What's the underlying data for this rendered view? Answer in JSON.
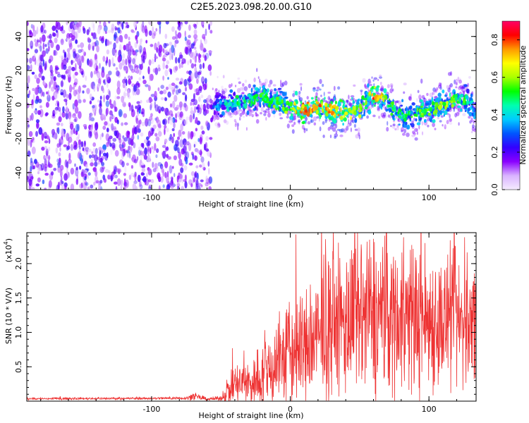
{
  "title": "C2E5.2023.098.20.00.G10",
  "chart_data": [
    {
      "type": "heatmap",
      "xlabel": "Height of straight line (km)",
      "ylabel": "Frequency (Hz)",
      "xlim": [
        -190,
        134
      ],
      "ylim": [
        -50,
        49
      ],
      "xticks": [
        -100,
        0,
        100
      ],
      "yticks": [
        -40,
        -20,
        0,
        20,
        40
      ],
      "colorbar": {
        "label": "Normalized spectral amplitude",
        "range": [
          0.0,
          0.9
        ],
        "ticks": [
          "0.0",
          "0.2",
          "0.4",
          "0.6",
          "0.8"
        ],
        "colors": [
          "#f5ecff",
          "#d9b3ff",
          "#8a00ff",
          "#3300ff",
          "#0055ff",
          "#00ccff",
          "#00ffb0",
          "#00ff00",
          "#aaff00",
          "#ffff00",
          "#ff9900",
          "#ff0000",
          "#ff0066"
        ]
      },
      "noise_region": {
        "x_range": [
          -190,
          -57
        ],
        "typical_amplitude": 0.15
      },
      "signal_ridge": {
        "x": [
          -57,
          -50,
          -40,
          -30,
          -20,
          -10,
          0,
          10,
          20,
          30,
          40,
          50,
          55,
          60,
          65,
          70,
          80,
          90,
          100,
          110,
          120,
          130,
          134
        ],
        "y": [
          -2,
          0,
          1,
          2,
          5,
          2,
          -2,
          -3,
          -1,
          -3,
          -5,
          -3,
          3,
          6,
          5,
          2,
          -7,
          -5,
          -3,
          0,
          4,
          2,
          -7
        ],
        "amplitude": [
          0.3,
          0.4,
          0.45,
          0.5,
          0.55,
          0.55,
          0.6,
          0.8,
          0.7,
          0.75,
          0.7,
          0.6,
          0.55,
          0.8,
          0.7,
          0.55,
          0.5,
          0.55,
          0.6,
          0.6,
          0.55,
          0.45,
          0.4
        ]
      }
    },
    {
      "type": "line",
      "xlabel": "Height of straight line (km)",
      "ylabel": "SNR (10 * V/V)",
      "y_multiplier_label": "(x10",
      "y_multiplier_exp": "4",
      "y_multiplier_close": ")",
      "xlim": [
        -190,
        134
      ],
      "ylim": [
        0,
        24500
      ],
      "xticks": [
        -100,
        0,
        100
      ],
      "yticks": [
        "0.5",
        "1.0",
        "1.5",
        "2.0"
      ],
      "series": [
        {
          "color": "#ee3333",
          "x": [
            -190,
            -150,
            -100,
            -75,
            -70,
            -60,
            -50,
            -45,
            -40,
            -35,
            -30,
            -25,
            -20,
            -15,
            -10,
            -5,
            0,
            5,
            10,
            15,
            20,
            25,
            30,
            40,
            50,
            60,
            70,
            80,
            90,
            100,
            110,
            120,
            130,
            134
          ],
          "mean": [
            350,
            380,
            400,
            450,
            700,
            300,
            400,
            1500,
            2300,
            2600,
            2500,
            3000,
            4000,
            4500,
            5800,
            6500,
            7000,
            7500,
            7500,
            8500,
            9000,
            10000,
            11000,
            11500,
            12000,
            12500,
            12500,
            12500,
            12000,
            12000,
            11500,
            11500,
            11000,
            11000
          ],
          "spread": [
            150,
            150,
            150,
            200,
            500,
            200,
            300,
            1800,
            2800,
            3000,
            3200,
            3800,
            4500,
            5200,
            6200,
            6800,
            7500,
            7800,
            7500,
            8200,
            8500,
            9200,
            9500,
            10000,
            10500,
            11000,
            10500,
            10000,
            10000,
            9500,
            9000,
            9000,
            8500,
            8500
          ]
        }
      ]
    }
  ]
}
